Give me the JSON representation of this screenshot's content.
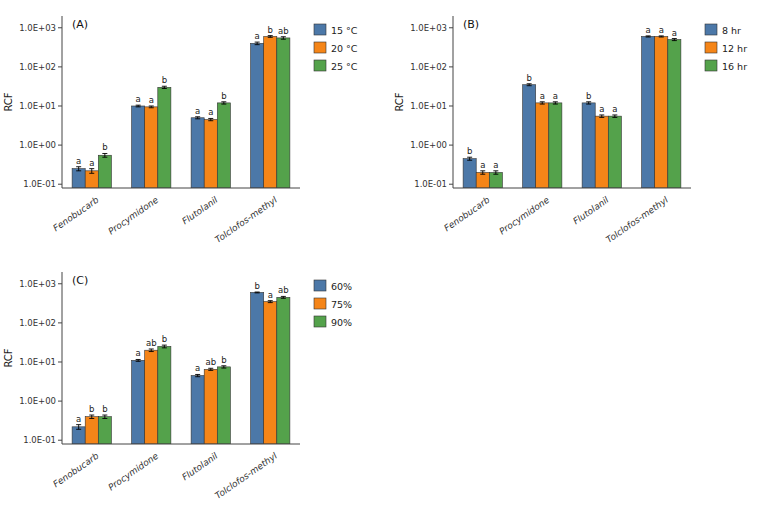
{
  "chart_data": [
    {
      "type": "bar",
      "title": "(A)",
      "ylabel": "RCF",
      "categories": [
        "Fenobucarb",
        "Procymidone",
        "Flutolanil",
        "Tolclofos-methyl"
      ],
      "series": [
        {
          "name": "15 °C",
          "color": "#4c78a8",
          "values": [
            0.25,
            10.0,
            5.0,
            400.0
          ],
          "errors": [
            0.03,
            0.5,
            0.3,
            30.0
          ],
          "annotations": [
            "a",
            "a",
            "a",
            "a"
          ]
        },
        {
          "name": "20 °C",
          "color": "#f58518",
          "values": [
            0.22,
            9.5,
            4.5,
            600.0
          ],
          "errors": [
            0.03,
            0.5,
            0.3,
            30.0
          ],
          "annotations": [
            "a",
            "a",
            "a",
            "b"
          ]
        },
        {
          "name": "25 °C",
          "color": "#54a24b",
          "values": [
            0.55,
            30.0,
            12.0,
            550.0
          ],
          "errors": [
            0.06,
            2.0,
            0.8,
            40.0
          ],
          "annotations": [
            "b",
            "b",
            "b",
            "ab"
          ]
        }
      ],
      "log": "y",
      "ylim": [
        0.08,
        2000.0
      ],
      "yticks": [
        {
          "value": 0.1,
          "label": "1.0E-01"
        },
        {
          "value": 1.0,
          "label": "1.0E+00"
        },
        {
          "value": 10.0,
          "label": "1.0E+01"
        },
        {
          "value": 100.0,
          "label": "1.0E+02"
        },
        {
          "value": 1000.0,
          "label": "1.0E+03"
        }
      ],
      "grid": false,
      "legend": "right"
    },
    {
      "type": "bar",
      "title": "(B)",
      "ylabel": "RCF",
      "categories": [
        "Fenobucarb",
        "Procymidone",
        "Flutolanil",
        "Tolclofos-methyl"
      ],
      "series": [
        {
          "name": "8 hr",
          "color": "#4c78a8",
          "values": [
            0.45,
            35.0,
            12.0,
            600.0
          ],
          "errors": [
            0.04,
            2.0,
            0.8,
            20.0
          ],
          "annotations": [
            "b",
            "b",
            "b",
            "a"
          ]
        },
        {
          "name": "12 hr",
          "color": "#f58518",
          "values": [
            0.2,
            12.0,
            5.5,
            600.0
          ],
          "errors": [
            0.02,
            0.8,
            0.4,
            20.0
          ],
          "annotations": [
            "a",
            "a",
            "a",
            "a"
          ]
        },
        {
          "name": "16 hr",
          "color": "#54a24b",
          "values": [
            0.2,
            12.0,
            5.5,
            500.0
          ],
          "errors": [
            0.02,
            0.8,
            0.4,
            30.0
          ],
          "annotations": [
            "a",
            "a",
            "a",
            "a"
          ]
        }
      ],
      "log": "y",
      "ylim": [
        0.08,
        2000.0
      ],
      "yticks": [
        {
          "value": 0.1,
          "label": "1.0E-01"
        },
        {
          "value": 1.0,
          "label": "1.0E+00"
        },
        {
          "value": 10.0,
          "label": "1.0E+01"
        },
        {
          "value": 100.0,
          "label": "1.0E+02"
        },
        {
          "value": 1000.0,
          "label": "1.0E+03"
        }
      ],
      "grid": false,
      "legend": "right"
    },
    {
      "type": "bar",
      "title": "(C)",
      "ylabel": "RCF",
      "categories": [
        "Fenobucarb",
        "Procymidone",
        "Flutolanil",
        "Tolclofos-methyl"
      ],
      "series": [
        {
          "name": "60%",
          "color": "#4c78a8",
          "values": [
            0.22,
            11.0,
            4.5,
            600.0
          ],
          "errors": [
            0.03,
            0.6,
            0.3,
            15.0
          ],
          "annotations": [
            "a",
            "a",
            "a",
            "b"
          ]
        },
        {
          "name": "75%",
          "color": "#f58518",
          "values": [
            0.4,
            20.0,
            6.5,
            350.0
          ],
          "errors": [
            0.04,
            1.5,
            0.4,
            20.0
          ],
          "annotations": [
            "b",
            "ab",
            "ab",
            "a"
          ]
        },
        {
          "name": "90%",
          "color": "#54a24b",
          "values": [
            0.4,
            25.0,
            7.5,
            450.0
          ],
          "errors": [
            0.04,
            2.0,
            0.5,
            25.0
          ],
          "annotations": [
            "b",
            "b",
            "b",
            "ab"
          ]
        }
      ],
      "log": "y",
      "ylim": [
        0.08,
        2000.0
      ],
      "yticks": [
        {
          "value": 0.1,
          "label": "1.0E-01"
        },
        {
          "value": 1.0,
          "label": "1.0E+00"
        },
        {
          "value": 10.0,
          "label": "1.0E+01"
        },
        {
          "value": 100.0,
          "label": "1.0E+02"
        },
        {
          "value": 1000.0,
          "label": "1.0E+03"
        }
      ],
      "grid": false,
      "legend": "right"
    }
  ]
}
